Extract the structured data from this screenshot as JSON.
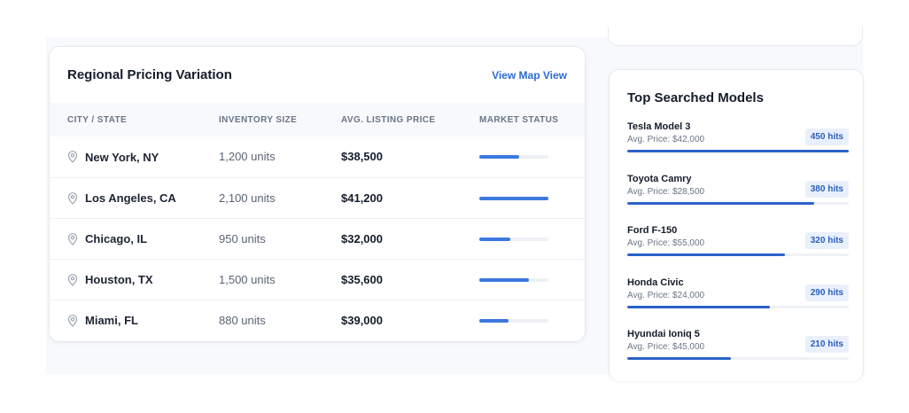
{
  "pricing": {
    "title": "Regional Pricing Variation",
    "link": "View Map View",
    "columns": [
      "City / State",
      "Inventory Size",
      "Avg. Listing Price",
      "Market Status"
    ],
    "rows": [
      {
        "city": "New York, NY",
        "inventory": "1,200 units",
        "price": "$38,500",
        "status_fraction": 0.58
      },
      {
        "city": "Los Angeles, CA",
        "inventory": "2,100 units",
        "price": "$41,200",
        "status_fraction": 1.0
      },
      {
        "city": "Chicago, IL",
        "inventory": "950 units",
        "price": "$32,000",
        "status_fraction": 0.45
      },
      {
        "city": "Houston, TX",
        "inventory": "1,500 units",
        "price": "$35,600",
        "status_fraction": 0.72
      },
      {
        "city": "Miami, FL",
        "inventory": "880 units",
        "price": "$39,000",
        "status_fraction": 0.42
      }
    ]
  },
  "models": {
    "title": "Top Searched Models",
    "items": [
      {
        "name": "Tesla Model 3",
        "price": "Avg. Price: $42,000",
        "hits": "450 hits",
        "fraction": 1.0
      },
      {
        "name": "Toyota Camry",
        "price": "Avg. Price: $28,500",
        "hits": "380 hits",
        "fraction": 0.844
      },
      {
        "name": "Ford F-150",
        "price": "Avg. Price: $55,000",
        "hits": "320 hits",
        "fraction": 0.711
      },
      {
        "name": "Honda Civic",
        "price": "Avg. Price: $24,000",
        "hits": "290 hits",
        "fraction": 0.644
      },
      {
        "name": "Hyundai Ioniq 5",
        "price": "Avg. Price: $45,000",
        "hits": "210 hits",
        "fraction": 0.467
      }
    ]
  },
  "colors": {
    "accent": "#3b78e0",
    "link": "#2b6cd4",
    "badge_bg": "#e9f0fb"
  },
  "icons": {
    "location": "map-pin-icon"
  }
}
